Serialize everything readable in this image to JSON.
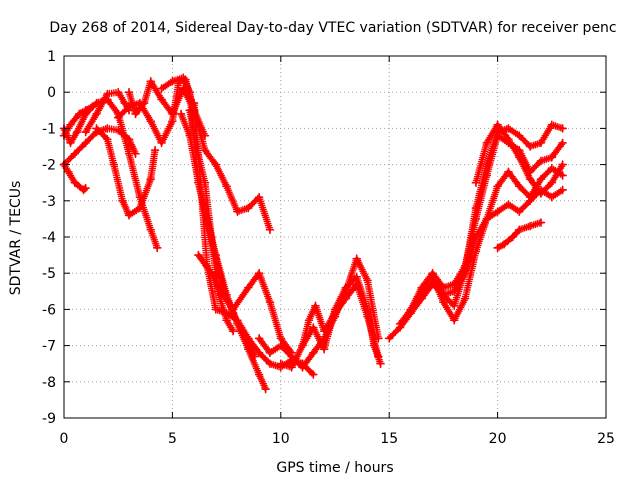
{
  "chart_data": {
    "type": "scatter",
    "title": "Day 268 of 2014, Sidereal Day-to-day VTEC variation (SDTVAR) for receiver penc",
    "xlabel": "GPS time / hours",
    "ylabel": "SDTVAR / TECUs",
    "xlim": [
      0,
      25
    ],
    "ylim": [
      -9,
      1
    ],
    "xticks": [
      "0",
      "5",
      "10",
      "15",
      "20",
      "25"
    ],
    "yticks": [
      "1",
      "0",
      "-1",
      "-2",
      "-3",
      "-4",
      "-5",
      "-6",
      "-7",
      "-8",
      "-9"
    ],
    "grid": true,
    "marker": "+",
    "colors": {
      "series": "#ff0000"
    },
    "series": [
      {
        "x": [
          0.0,
          0.3,
          0.6,
          1.0,
          1.5,
          2.0,
          2.5,
          3.0,
          3.5,
          4.0,
          4.3
        ],
        "y": [
          -1.0,
          -1.4,
          -1.1,
          -0.6,
          -0.3,
          -0.2,
          -0.6,
          -1.7,
          -2.9,
          -3.8,
          -4.3
        ]
      },
      {
        "x": [
          0.0,
          0.2,
          0.5,
          0.9,
          1.0
        ],
        "y": [
          -2.0,
          -2.2,
          -2.5,
          -2.7,
          -2.65
        ]
      },
      {
        "x": [
          0.0,
          0.5,
          1.0,
          1.5,
          2.0,
          2.5,
          3.0,
          3.3
        ],
        "y": [
          -2.0,
          -1.7,
          -1.4,
          -1.1,
          -1.0,
          -1.05,
          -1.3,
          -1.7
        ]
      },
      {
        "x": [
          0.0,
          0.3,
          0.7,
          1.0,
          1.3
        ],
        "y": [
          -1.2,
          -0.9,
          -0.6,
          -0.5,
          -0.4
        ]
      },
      {
        "x": [
          1.0,
          1.5,
          2.0,
          2.5,
          2.8,
          3.0
        ],
        "y": [
          -1.1,
          -0.6,
          -0.05,
          0.0,
          -0.3,
          -0.5
        ]
      },
      {
        "x": [
          1.5,
          2.0,
          2.3,
          2.7,
          3.0,
          3.5,
          4.0,
          4.2
        ],
        "y": [
          -1.0,
          -1.3,
          -2.0,
          -3.0,
          -3.4,
          -3.2,
          -2.4,
          -1.6
        ]
      },
      {
        "x": [
          2.5,
          3.0,
          3.5,
          4.0,
          4.5,
          5.0,
          5.3,
          5.6,
          6.0,
          6.5,
          7.0,
          7.5,
          8.0,
          8.5,
          9.0,
          9.5
        ],
        "y": [
          -0.7,
          -0.4,
          -0.3,
          -0.8,
          -1.4,
          -0.8,
          0.3,
          0.35,
          -0.5,
          -1.6,
          -2.0,
          -2.6,
          -3.3,
          -3.2,
          -2.9,
          -3.8
        ]
      },
      {
        "x": [
          3.0,
          3.3,
          3.7,
          4.0,
          4.5,
          5.0,
          5.5,
          6.0,
          6.5
        ],
        "y": [
          0.0,
          -0.6,
          -0.3,
          0.3,
          -0.2,
          -0.6,
          0.1,
          -0.5,
          -1.2
        ]
      },
      {
        "x": [
          4.5,
          5.0,
          5.5,
          5.8,
          6.2,
          6.6,
          7.0,
          7.5,
          8.0,
          8.5,
          9.0,
          9.3
        ],
        "y": [
          0.1,
          0.3,
          0.4,
          0.0,
          -2.5,
          -3.5,
          -4.5,
          -5.6,
          -6.4,
          -7.1,
          -7.8,
          -8.2
        ]
      },
      {
        "x": [
          5.4,
          5.8,
          6.2,
          6.6,
          7.0,
          7.4,
          7.8,
          8.2,
          8.5,
          8.8
        ],
        "y": [
          -0.6,
          -1.2,
          -2.5,
          -3.6,
          -4.6,
          -5.5,
          -6.1,
          -6.6,
          -6.9,
          -7.3
        ]
      },
      {
        "x": [
          5.8,
          6.1,
          6.5,
          6.8,
          7.1,
          7.5,
          7.8
        ],
        "y": [
          -0.5,
          -1.5,
          -2.5,
          -4.0,
          -5.5,
          -6.3,
          -6.6
        ]
      },
      {
        "x": [
          6.0,
          6.3,
          6.6,
          7.0,
          7.5,
          8.0,
          8.5,
          9.0,
          9.5,
          10.0,
          10.5,
          11.0,
          11.5
        ],
        "y": [
          -0.3,
          -2.5,
          -4.8,
          -6.0,
          -6.1,
          -6.3,
          -6.8,
          -7.2,
          -7.5,
          -7.6,
          -7.4,
          -7.5,
          -7.8
        ]
      },
      {
        "x": [
          6.2,
          6.8,
          7.2,
          7.8,
          8.5,
          9.0,
          9.5,
          10.0,
          10.5
        ],
        "y": [
          -4.5,
          -5.0,
          -5.5,
          -6.0,
          -5.4,
          -5.0,
          -5.8,
          -6.8,
          -7.2
        ]
      },
      {
        "x": [
          9.0,
          9.5,
          10.0,
          10.5,
          11.0,
          11.5,
          12.0,
          12.5,
          13.0,
          13.5,
          14.0,
          14.5
        ],
        "y": [
          -6.8,
          -7.2,
          -7.0,
          -7.3,
          -7.6,
          -7.2,
          -6.8,
          -6.2,
          -5.5,
          -4.6,
          -5.2,
          -6.8
        ]
      },
      {
        "x": [
          10.0,
          10.5,
          11.0,
          11.5,
          12.0,
          12.5,
          13.0,
          13.5,
          14.0,
          14.3,
          14.6
        ],
        "y": [
          -7.5,
          -7.6,
          -7.0,
          -6.5,
          -7.1,
          -6.0,
          -5.4,
          -5.1,
          -6.0,
          -7.0,
          -7.5
        ]
      },
      {
        "x": [
          11.0,
          11.3,
          11.6,
          12.0,
          12.5,
          13.0,
          13.5,
          14.0,
          14.5
        ],
        "y": [
          -7.0,
          -6.3,
          -5.9,
          -6.6,
          -6.1,
          -5.7,
          -5.3,
          -6.2,
          -7.3
        ]
      },
      {
        "x": [
          15.0,
          15.5,
          16.0,
          16.5,
          17.0,
          17.5,
          18.0,
          18.5,
          19.0,
          19.5,
          20.0,
          20.5,
          21.0,
          21.5,
          22.0,
          22.5,
          23.0
        ],
        "y": [
          -6.8,
          -6.5,
          -6.1,
          -5.7,
          -5.3,
          -5.6,
          -5.9,
          -4.9,
          -3.2,
          -2.0,
          -1.1,
          -1.0,
          -1.2,
          -1.5,
          -1.4,
          -0.9,
          -1.0
        ]
      },
      {
        "x": [
          15.5,
          16.0,
          16.5,
          17.0,
          17.5,
          18.0,
          18.5,
          19.0,
          19.5,
          20.0,
          20.5,
          21.0,
          21.5,
          22.0,
          22.5,
          23.0
        ],
        "y": [
          -6.4,
          -6.0,
          -5.4,
          -5.0,
          -5.4,
          -5.3,
          -4.8,
          -3.5,
          -2.3,
          -1.2,
          -1.4,
          -1.6,
          -2.2,
          -1.9,
          -1.8,
          -1.4
        ]
      },
      {
        "x": [
          16.0,
          16.5,
          17.0,
          17.5,
          18.0,
          18.5,
          19.0,
          19.5,
          20.0,
          20.5,
          21.0,
          21.5,
          22.0,
          22.5,
          23.0
        ],
        "y": [
          -6.0,
          -5.6,
          -5.1,
          -5.8,
          -6.3,
          -5.7,
          -4.4,
          -3.5,
          -2.6,
          -2.2,
          -2.6,
          -2.9,
          -2.4,
          -2.1,
          -2.3
        ]
      },
      {
        "x": [
          17.0,
          17.5,
          18.0,
          18.5,
          19.0,
          19.5,
          20.0,
          20.5,
          21.0,
          21.5,
          22.0,
          22.5,
          23.0
        ],
        "y": [
          -5.1,
          -5.6,
          -5.5,
          -5.0,
          -4.0,
          -3.5,
          -3.3,
          -3.1,
          -3.3,
          -3.0,
          -2.7,
          -2.9,
          -2.7
        ]
      },
      {
        "x": [
          19.0,
          19.5,
          20.0,
          20.5,
          21.0,
          21.5,
          22.0,
          22.5,
          23.0
        ],
        "y": [
          -2.5,
          -1.4,
          -0.9,
          -1.3,
          -1.8,
          -2.4,
          -2.8,
          -2.5,
          -2.0
        ]
      },
      {
        "x": [
          20.0,
          20.3,
          20.7,
          21.0,
          21.5,
          22.0
        ],
        "y": [
          -4.3,
          -4.2,
          -4.0,
          -3.8,
          -3.7,
          -3.6
        ]
      }
    ]
  }
}
